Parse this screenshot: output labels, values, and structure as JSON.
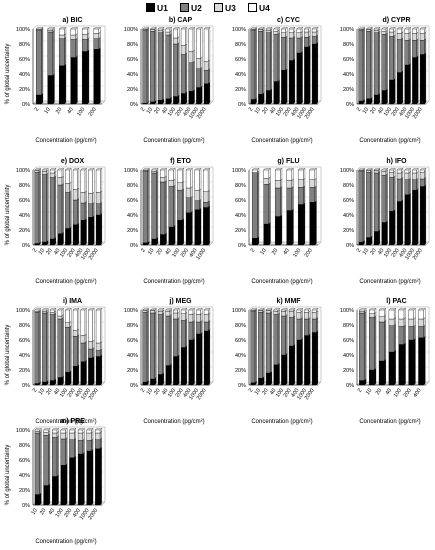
{
  "legend": [
    {
      "label": "U1",
      "color": "#000000"
    },
    {
      "label": "U2",
      "color": "#808080"
    },
    {
      "label": "U3",
      "color": "#d9d9d9"
    },
    {
      "label": "U4",
      "color": "#ffffff"
    }
  ],
  "chart_data": [
    {
      "type": "bar",
      "stacked": true,
      "title": "a) BIC",
      "xlabel": "Concentration (pg/cm²)",
      "ylabel": "% of global uncertainty",
      "ylim": [
        0,
        100
      ],
      "y_ticks": [
        "0%",
        "20%",
        "40%",
        "60%",
        "80%",
        "100%"
      ],
      "categories": [
        "2",
        "10",
        "20",
        "40",
        "100",
        "200"
      ],
      "series": [
        {
          "name": "U1",
          "values": [
            12,
            38,
            51,
            62,
            70,
            73
          ]
        },
        {
          "name": "U2",
          "values": [
            86,
            58,
            36,
            24,
            16,
            14
          ]
        },
        {
          "name": "U3",
          "values": [
            1,
            2,
            5,
            6,
            7,
            7
          ]
        },
        {
          "name": "U4",
          "values": [
            1,
            2,
            8,
            8,
            7,
            6
          ]
        }
      ]
    },
    {
      "type": "bar",
      "stacked": true,
      "title": "b) CAP",
      "xlabel": "Concentration (pg/cm²)",
      "ylabel": "",
      "ylim": [
        0,
        100
      ],
      "y_ticks": [
        "0%",
        "20%",
        "40%",
        "60%",
        "80%",
        "100%"
      ],
      "categories": [
        "2",
        "10",
        "20",
        "40",
        "100",
        "200",
        "400",
        "1000",
        "2000"
      ],
      "series": [
        {
          "name": "U1",
          "values": [
            1,
            3,
            5,
            7,
            10,
            14,
            17,
            22,
            27
          ]
        },
        {
          "name": "U2",
          "values": [
            97,
            94,
            90,
            85,
            70,
            52,
            38,
            25,
            18
          ]
        },
        {
          "name": "U3",
          "values": [
            1,
            2,
            3,
            4,
            8,
            12,
            15,
            14,
            12
          ]
        },
        {
          "name": "U4",
          "values": [
            1,
            1,
            2,
            4,
            12,
            22,
            30,
            39,
            43
          ]
        }
      ]
    },
    {
      "type": "bar",
      "stacked": true,
      "title": "c) CYC",
      "xlabel": "Concentration (pg/cm²)",
      "ylabel": "",
      "ylim": [
        0,
        100
      ],
      "y_ticks": [
        "0%",
        "20%",
        "40%",
        "60%",
        "80%",
        "100%"
      ],
      "categories": [
        "2",
        "10",
        "20",
        "40",
        "100",
        "200",
        "400",
        "1000",
        "2000"
      ],
      "series": [
        {
          "name": "U1",
          "values": [
            6,
            13,
            18,
            30,
            45,
            58,
            68,
            76,
            80
          ]
        },
        {
          "name": "U2",
          "values": [
            92,
            84,
            77,
            63,
            44,
            30,
            20,
            13,
            10
          ]
        },
        {
          "name": "U3",
          "values": [
            1,
            2,
            3,
            4,
            6,
            7,
            7,
            7,
            6
          ]
        },
        {
          "name": "U4",
          "values": [
            1,
            1,
            2,
            3,
            5,
            5,
            5,
            4,
            4
          ]
        }
      ]
    },
    {
      "type": "bar",
      "stacked": true,
      "title": "d) CYPR",
      "xlabel": "Concentration (pg/cm²)",
      "ylabel": "",
      "ylim": [
        0,
        100
      ],
      "y_ticks": [
        "0%",
        "20%",
        "40%",
        "60%",
        "80%",
        "100%"
      ],
      "categories": [
        "2",
        "10",
        "20",
        "40",
        "100",
        "200",
        "400",
        "1000",
        "2000"
      ],
      "series": [
        {
          "name": "U1",
          "values": [
            4,
            7,
            12,
            18,
            32,
            42,
            52,
            62,
            66
          ]
        },
        {
          "name": "U2",
          "values": [
            94,
            90,
            83,
            75,
            58,
            44,
            33,
            23,
            19
          ]
        },
        {
          "name": "U3",
          "values": [
            1,
            2,
            3,
            4,
            6,
            8,
            9,
            9,
            9
          ]
        },
        {
          "name": "U4",
          "values": [
            1,
            1,
            2,
            3,
            4,
            6,
            6,
            6,
            6
          ]
        }
      ]
    },
    {
      "type": "bar",
      "stacked": true,
      "title": "e) DOX",
      "xlabel": "Concentration (pg/cm²)",
      "ylabel": "% of global uncertainty",
      "ylim": [
        0,
        100
      ],
      "y_ticks": [
        "0%",
        "20%",
        "40%",
        "60%",
        "80%",
        "100%"
      ],
      "categories": [
        "2",
        "10",
        "20",
        "40",
        "100",
        "200",
        "400",
        "1000",
        "2000"
      ],
      "series": [
        {
          "name": "U1",
          "values": [
            2,
            4,
            8,
            15,
            22,
            27,
            33,
            37,
            40
          ]
        },
        {
          "name": "U2",
          "values": [
            95,
            90,
            82,
            65,
            48,
            33,
            23,
            18,
            15
          ]
        },
        {
          "name": "U3",
          "values": [
            2,
            4,
            6,
            10,
            12,
            14,
            14,
            14,
            15
          ]
        },
        {
          "name": "U4",
          "values": [
            1,
            2,
            4,
            10,
            18,
            26,
            30,
            31,
            30
          ]
        }
      ]
    },
    {
      "type": "bar",
      "stacked": true,
      "title": "f) ETO",
      "xlabel": "Concentration (pg/cm²)",
      "ylabel": "",
      "ylim": [
        0,
        100
      ],
      "y_ticks": [
        "0%",
        "20%",
        "40%",
        "60%",
        "80%",
        "100%"
      ],
      "categories": [
        "2",
        "10",
        "20",
        "40",
        "100",
        "200",
        "400",
        "1000"
      ],
      "series": [
        {
          "name": "U1",
          "values": [
            3,
            8,
            14,
            24,
            33,
            43,
            47,
            50
          ]
        },
        {
          "name": "U2",
          "values": [
            95,
            88,
            70,
            54,
            40,
            20,
            12,
            7
          ]
        },
        {
          "name": "U3",
          "values": [
            1,
            2,
            6,
            8,
            10,
            13,
            14,
            14
          ]
        },
        {
          "name": "U4",
          "values": [
            1,
            2,
            10,
            14,
            17,
            24,
            27,
            29
          ]
        }
      ]
    },
    {
      "type": "bar",
      "stacked": true,
      "title": "g) FLU",
      "xlabel": "Concentration (pg/cm²)",
      "ylabel": "",
      "ylim": [
        0,
        100
      ],
      "y_ticks": [
        "0%",
        "20%",
        "40%",
        "60%",
        "80%",
        "100%"
      ],
      "categories": [
        "2",
        "10",
        "20",
        "40",
        "100",
        "200"
      ],
      "series": [
        {
          "name": "U1",
          "values": [
            9,
            28,
            38,
            46,
            54,
            57
          ]
        },
        {
          "name": "U2",
          "values": [
            86,
            53,
            38,
            30,
            23,
            20
          ]
        },
        {
          "name": "U3",
          "values": [
            2,
            8,
            10,
            10,
            10,
            10
          ]
        },
        {
          "name": "U4",
          "values": [
            3,
            11,
            14,
            14,
            13,
            13
          ]
        }
      ]
    },
    {
      "type": "bar",
      "stacked": true,
      "title": "h) IFO",
      "xlabel": "Concentration (pg/cm²)",
      "ylabel": "",
      "ylim": [
        0,
        100
      ],
      "y_ticks": [
        "0%",
        "20%",
        "40%",
        "60%",
        "80%",
        "100%"
      ],
      "categories": [
        "2",
        "10",
        "20",
        "40",
        "100",
        "200",
        "400",
        "1000",
        "2000"
      ],
      "series": [
        {
          "name": "U1",
          "values": [
            4,
            10,
            18,
            30,
            45,
            58,
            67,
            73,
            78
          ]
        },
        {
          "name": "U2",
          "values": [
            94,
            87,
            78,
            63,
            45,
            30,
            20,
            14,
            10
          ]
        },
        {
          "name": "U3",
          "values": [
            1,
            2,
            3,
            5,
            7,
            8,
            9,
            9,
            9
          ]
        },
        {
          "name": "U4",
          "values": [
            1,
            1,
            1,
            2,
            3,
            4,
            4,
            4,
            3
          ]
        }
      ]
    },
    {
      "type": "bar",
      "stacked": true,
      "title": "i) IMA",
      "xlabel": "Concentration (pg/cm²)",
      "ylabel": "% of global uncertainty",
      "ylim": [
        0,
        100
      ],
      "y_ticks": [
        "0%",
        "20%",
        "40%",
        "60%",
        "80%",
        "100%"
      ],
      "categories": [
        "2",
        "10",
        "20",
        "40",
        "100",
        "200",
        "400",
        "1000",
        "2000"
      ],
      "series": [
        {
          "name": "U1",
          "values": [
            2,
            4,
            6,
            10,
            17,
            25,
            31,
            36,
            38
          ]
        },
        {
          "name": "U2",
          "values": [
            95,
            92,
            88,
            78,
            60,
            40,
            25,
            12,
            8
          ]
        },
        {
          "name": "U3",
          "values": [
            1,
            2,
            3,
            4,
            6,
            8,
            10,
            10,
            10
          ]
        },
        {
          "name": "U4",
          "values": [
            2,
            2,
            3,
            8,
            17,
            27,
            34,
            42,
            44
          ]
        }
      ]
    },
    {
      "type": "bar",
      "stacked": true,
      "title": "j) MEG",
      "xlabel": "Concentration (pg/cm²)",
      "ylabel": "",
      "ylim": [
        0,
        100
      ],
      "y_ticks": [
        "0%",
        "20%",
        "40%",
        "60%",
        "80%",
        "100%"
      ],
      "categories": [
        "2",
        "10",
        "20",
        "40",
        "100",
        "200",
        "400",
        "1000",
        "2000"
      ],
      "series": [
        {
          "name": "U1",
          "values": [
            4,
            8,
            14,
            26,
            38,
            50,
            60,
            68,
            72
          ]
        },
        {
          "name": "U2",
          "values": [
            93,
            88,
            80,
            66,
            50,
            36,
            24,
            16,
            12
          ]
        },
        {
          "name": "U3",
          "values": [
            2,
            3,
            4,
            6,
            8,
            9,
            10,
            10,
            10
          ]
        },
        {
          "name": "U4",
          "values": [
            1,
            1,
            2,
            2,
            4,
            5,
            6,
            6,
            6
          ]
        }
      ]
    },
    {
      "type": "bar",
      "stacked": true,
      "title": "k) MMF",
      "xlabel": "Concentration (pg/cm²)",
      "ylabel": "",
      "ylim": [
        0,
        100
      ],
      "y_ticks": [
        "0%",
        "20%",
        "40%",
        "60%",
        "80%",
        "100%"
      ],
      "categories": [
        "2",
        "10",
        "20",
        "40",
        "100",
        "200",
        "400",
        "1000",
        "2000"
      ],
      "series": [
        {
          "name": "U1",
          "values": [
            3,
            9,
            16,
            27,
            40,
            52,
            60,
            66,
            70
          ]
        },
        {
          "name": "U2",
          "values": [
            95,
            88,
            80,
            67,
            52,
            38,
            28,
            22,
            18
          ]
        },
        {
          "name": "U3",
          "values": [
            1,
            2,
            3,
            4,
            6,
            8,
            9,
            9,
            9
          ]
        },
        {
          "name": "U4",
          "values": [
            1,
            1,
            1,
            2,
            2,
            2,
            3,
            3,
            3
          ]
        }
      ]
    },
    {
      "type": "bar",
      "stacked": true,
      "title": "l) PAC",
      "xlabel": "Concentration (pg/cm²)",
      "ylabel": "",
      "ylim": [
        0,
        100
      ],
      "y_ticks": [
        "0%",
        "20%",
        "40%",
        "60%",
        "80%",
        "100%"
      ],
      "categories": [
        "2",
        "10",
        "20",
        "40",
        "100",
        "200",
        "400"
      ],
      "series": [
        {
          "name": "U1",
          "values": [
            6,
            20,
            32,
            44,
            54,
            60,
            63
          ]
        },
        {
          "name": "U2",
          "values": [
            90,
            70,
            52,
            35,
            24,
            18,
            15
          ]
        },
        {
          "name": "U3",
          "values": [
            2,
            5,
            7,
            9,
            10,
            10,
            10
          ]
        },
        {
          "name": "U4",
          "values": [
            2,
            5,
            9,
            12,
            12,
            12,
            12
          ]
        }
      ]
    },
    {
      "type": "bar",
      "stacked": true,
      "title": "m) PRE",
      "xlabel": "Concentration (pg/cm²)",
      "ylabel": "% of global uncertainty",
      "ylim": [
        0,
        100
      ],
      "y_ticks": [
        "0%",
        "20%",
        "40%",
        "60%",
        "80%",
        "100%"
      ],
      "categories": [
        "10",
        "20",
        "40",
        "100",
        "200",
        "400",
        "1000",
        "2000"
      ],
      "series": [
        {
          "name": "U1",
          "values": [
            14,
            26,
            38,
            53,
            63,
            68,
            72,
            75
          ]
        },
        {
          "name": "U2",
          "values": [
            82,
            67,
            52,
            35,
            24,
            18,
            14,
            12
          ]
        },
        {
          "name": "U3",
          "values": [
            2,
            4,
            6,
            8,
            9,
            10,
            10,
            9
          ]
        },
        {
          "name": "U4",
          "values": [
            2,
            3,
            4,
            4,
            4,
            4,
            4,
            4
          ]
        }
      ]
    }
  ]
}
